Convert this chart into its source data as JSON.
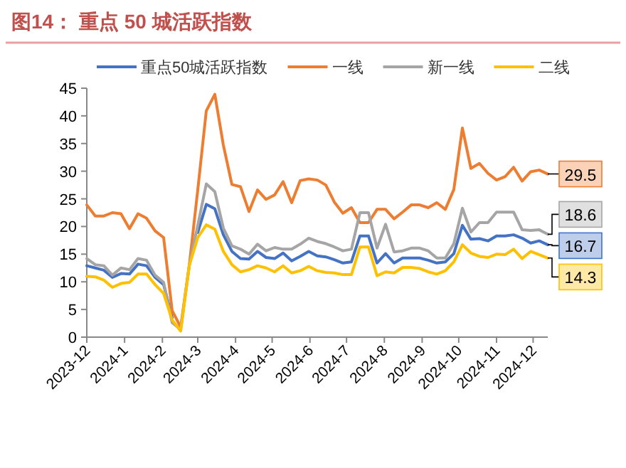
{
  "chart_data": {
    "type": "line",
    "title": "图14：  重点 50 城活跃指数",
    "x": [
      "2023-12-01",
      "2023-12-08",
      "2023-12-15",
      "2023-12-22",
      "2023-12-29",
      "2024-01-05",
      "2024-01-12",
      "2024-01-19",
      "2024-01-26",
      "2024-02-02",
      "2024-02-09",
      "2024-02-16",
      "2024-02-23",
      "2024-03-01",
      "2024-03-08",
      "2024-03-15",
      "2024-03-22",
      "2024-03-29",
      "2024-04-05",
      "2024-04-12",
      "2024-04-19",
      "2024-04-26",
      "2024-05-03",
      "2024-05-10",
      "2024-05-17",
      "2024-05-24",
      "2024-05-31",
      "2024-06-07",
      "2024-06-14",
      "2024-06-21",
      "2024-06-28",
      "2024-07-05",
      "2024-07-12",
      "2024-07-19",
      "2024-07-26",
      "2024-08-02",
      "2024-08-09",
      "2024-08-16",
      "2024-08-23",
      "2024-08-30",
      "2024-09-06",
      "2024-09-13",
      "2024-09-20",
      "2024-09-27",
      "2024-10-04",
      "2024-10-11",
      "2024-10-18",
      "2024-10-25",
      "2024-11-01",
      "2024-11-08",
      "2024-11-15",
      "2024-11-22",
      "2024-11-29",
      "2024-12-06",
      "2024-12-13"
    ],
    "series": [
      {
        "name": "重点50城活跃指数",
        "color": "#4472c4",
        "values": [
          12.9,
          12.5,
          12.1,
          10.8,
          11.5,
          11.4,
          13.2,
          12.9,
          10.8,
          9.5,
          3.5,
          null,
          null,
          18.9,
          24.0,
          23.2,
          18.5,
          15.5,
          14.2,
          14.1,
          15.5,
          14.4,
          14.2,
          15.2,
          13.8,
          14.6,
          15.5,
          14.7,
          14.5,
          14.0,
          13.4,
          13.6,
          18.3,
          18.3,
          13.4,
          15.1,
          13.4,
          14.3,
          14.3,
          14.3,
          13.9,
          13.4,
          13.6,
          15.1,
          20.2,
          17.7,
          17.8,
          17.4,
          18.3,
          18.3,
          18.5,
          17.9,
          17.0,
          17.4,
          16.7
        ],
        "value_labels": [
          null,
          null,
          null,
          null,
          null,
          null,
          null,
          null,
          null,
          null,
          null,
          null,
          null,
          null,
          null,
          null,
          null,
          null,
          null,
          null,
          null,
          null,
          null,
          null,
          null,
          null,
          null,
          null,
          null,
          null,
          null,
          null,
          null,
          null,
          null,
          null,
          null,
          null,
          null,
          null,
          null,
          null,
          null,
          null,
          null,
          null,
          null,
          null,
          null,
          null,
          null,
          null,
          null,
          null,
          "16.7"
        ]
      },
      {
        "name": "一线",
        "color": "#ed7d31",
        "values": [
          23.9,
          21.9,
          21.9,
          22.5,
          22.3,
          19.6,
          22.3,
          21.5,
          19.2,
          18.0,
          4.8,
          1.8,
          12.9,
          26.6,
          40.9,
          43.9,
          34.7,
          27.6,
          27.2,
          22.7,
          26.6,
          24.9,
          25.7,
          28.1,
          24.3,
          28.3,
          28.6,
          28.4,
          27.5,
          24.4,
          22.4,
          23.4,
          20.7,
          20.7,
          23.1,
          23.1,
          21.4,
          22.6,
          23.9,
          23.9,
          23.4,
          24.3,
          23.1,
          26.7,
          37.8,
          30.5,
          31.4,
          29.6,
          28.4,
          29.0,
          30.7,
          28.2,
          29.9,
          30.2,
          29.5
        ],
        "value_labels": [
          null,
          null,
          null,
          null,
          null,
          null,
          null,
          null,
          null,
          null,
          null,
          null,
          null,
          null,
          null,
          null,
          null,
          null,
          null,
          null,
          null,
          null,
          null,
          null,
          null,
          null,
          null,
          null,
          null,
          null,
          null,
          null,
          null,
          null,
          null,
          null,
          null,
          null,
          null,
          null,
          null,
          null,
          null,
          null,
          null,
          null,
          null,
          null,
          null,
          null,
          null,
          null,
          null,
          null,
          "29.5"
        ]
      },
      {
        "name": "新一线",
        "color": "#a5a5a5",
        "values": [
          14.2,
          13.1,
          12.9,
          11.2,
          12.5,
          12.2,
          14.2,
          13.9,
          11.2,
          9.9,
          2.6,
          1.4,
          12.9,
          20.2,
          27.7,
          26.3,
          19.7,
          16.5,
          15.9,
          15.0,
          16.8,
          15.6,
          16.2,
          15.9,
          15.9,
          16.8,
          17.9,
          17.3,
          16.9,
          16.3,
          15.6,
          15.9,
          22.5,
          22.5,
          16.1,
          20.4,
          15.4,
          15.6,
          16.1,
          16.1,
          15.6,
          14.3,
          14.3,
          16.9,
          23.3,
          19.0,
          20.7,
          20.7,
          22.6,
          22.6,
          22.6,
          19.4,
          19.3,
          19.4,
          18.6
        ],
        "value_labels": [
          null,
          null,
          null,
          null,
          null,
          null,
          null,
          null,
          null,
          null,
          null,
          null,
          null,
          null,
          null,
          null,
          null,
          null,
          null,
          null,
          null,
          null,
          null,
          null,
          null,
          null,
          null,
          null,
          null,
          null,
          null,
          null,
          null,
          null,
          null,
          null,
          null,
          null,
          null,
          null,
          null,
          null,
          null,
          null,
          null,
          null,
          null,
          null,
          null,
          null,
          null,
          null,
          null,
          null,
          "18.6"
        ]
      },
      {
        "name": "二线",
        "color": "#ffc000",
        "values": [
          11.0,
          10.9,
          10.3,
          9.0,
          9.7,
          9.9,
          11.4,
          11.4,
          9.5,
          7.9,
          3.1,
          1.1,
          12.9,
          18.0,
          20.3,
          19.5,
          15.5,
          13.1,
          11.8,
          12.2,
          12.9,
          12.5,
          11.8,
          12.9,
          11.6,
          12.0,
          12.8,
          12.0,
          11.7,
          11.6,
          11.3,
          11.3,
          16.3,
          16.3,
          11.1,
          11.8,
          11.6,
          12.6,
          12.6,
          12.4,
          11.8,
          11.4,
          12.0,
          13.6,
          16.7,
          15.2,
          14.6,
          14.4,
          15.0,
          14.9,
          15.9,
          14.2,
          15.5,
          14.9,
          14.3
        ],
        "value_labels": [
          null,
          null,
          null,
          null,
          null,
          null,
          null,
          null,
          null,
          null,
          null,
          null,
          null,
          null,
          null,
          null,
          null,
          null,
          null,
          null,
          null,
          null,
          null,
          null,
          null,
          null,
          null,
          null,
          null,
          null,
          null,
          null,
          null,
          null,
          null,
          null,
          null,
          null,
          null,
          null,
          null,
          null,
          null,
          null,
          null,
          null,
          null,
          null,
          null,
          null,
          null,
          null,
          null,
          null,
          "14.3"
        ]
      }
    ],
    "xlim": [
      "2023-12-01",
      "2024-12-13"
    ],
    "xticks": [
      "2023-12",
      "2024-1",
      "2024-2",
      "2024-3",
      "2024-4",
      "2024-5",
      "2024-6",
      "2024-7",
      "2024-8",
      "2024-9",
      "2024-10",
      "2024-11",
      "2024-12"
    ],
    "ylim": [
      0,
      45
    ],
    "yticks": [
      0,
      5,
      10,
      15,
      20,
      25,
      30,
      35,
      40,
      45
    ],
    "grid": false,
    "legend": "top",
    "marker": "none",
    "line_style": "solid"
  }
}
